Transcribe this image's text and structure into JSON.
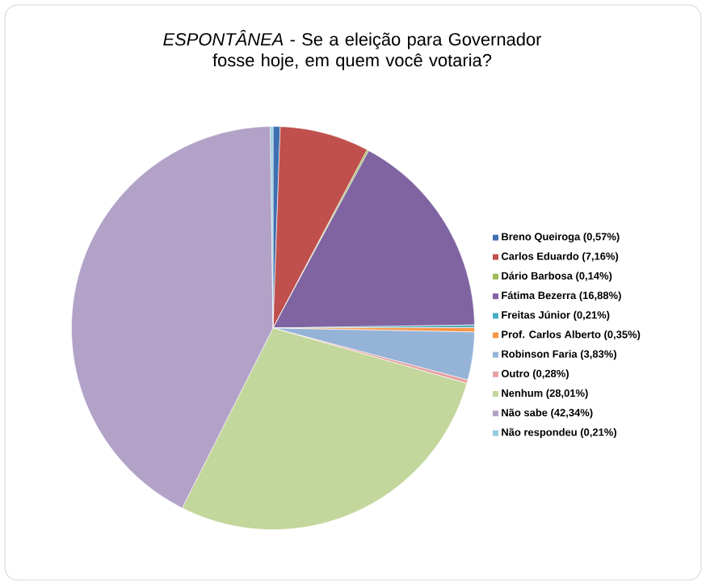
{
  "chart_data": {
    "type": "pie",
    "title": "*ESPONTÂNEA* - Se a eleição para Governador fosse hoje, em quem você votaria?",
    "categories": [
      "Breno Queiroga (0,57%)",
      "Carlos Eduardo (7,16%)",
      "Dário Barbosa (0,14%)",
      "Fátima Bezerra (16,88%)",
      "Freitas Júnior (0,21%)",
      "Prof. Carlos Alberto (0,35%)",
      "Robinson Faria (3,83%)",
      "Outro (0,28%)",
      "Nenhum (28,01%)",
      "Não sabe (42,34%)",
      "Não respondeu (0,21%)"
    ],
    "values": [
      0.57,
      7.16,
      0.14,
      16.88,
      0.21,
      0.35,
      3.83,
      0.28,
      28.01,
      42.34,
      0.21
    ],
    "colors": [
      "#3f6fb0",
      "#c0504d",
      "#9bbb59",
      "#8064a2",
      "#4bacc6",
      "#f79646",
      "#95b3d7",
      "#e6a0a0",
      "#c3d69b",
      "#b2a2c7",
      "#93cddd"
    ],
    "legend": "right"
  }
}
